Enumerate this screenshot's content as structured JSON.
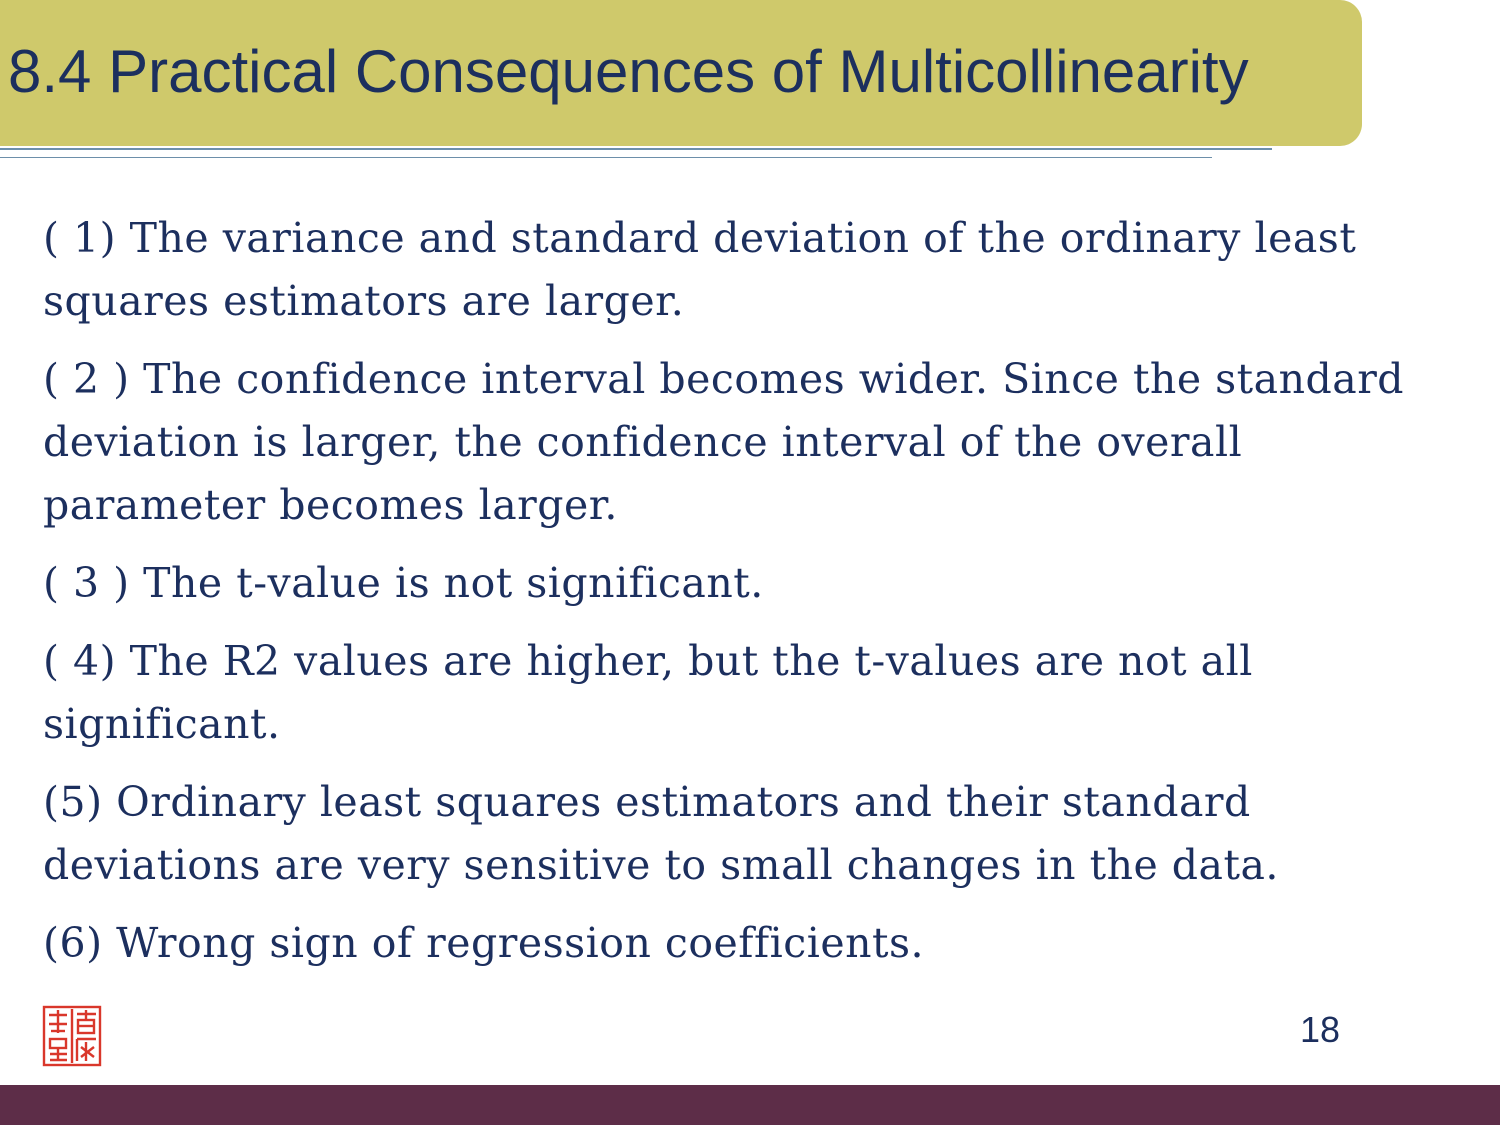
{
  "slide": {
    "title": "8.4 Practical Consequences of Multicollinearity",
    "points": [
      "( 1) The variance and standard deviation of the ordinary least squares estimators are larger.",
      "( 2 ) The confidence interval becomes wider. Since the standard deviation is larger, the confidence interval of the overall parameter becomes larger.",
      "( 3 ) The t-value is not significant.",
      "( 4) The R2 values are higher, but the t-values are not all significant.",
      "(5) Ordinary least squares estimators and their standard deviations are very sensitive to small changes in the data.",
      "(6) Wrong sign of regression coefficients."
    ],
    "page_number": "18"
  },
  "colors": {
    "title_bar": "#cfc96b",
    "text": "#1c2f5e",
    "rule": "#6d8faa",
    "footer": "#5d2d48",
    "seal": "#d9372b"
  },
  "icons": {
    "seal": "red-seal-stamp-icon"
  }
}
